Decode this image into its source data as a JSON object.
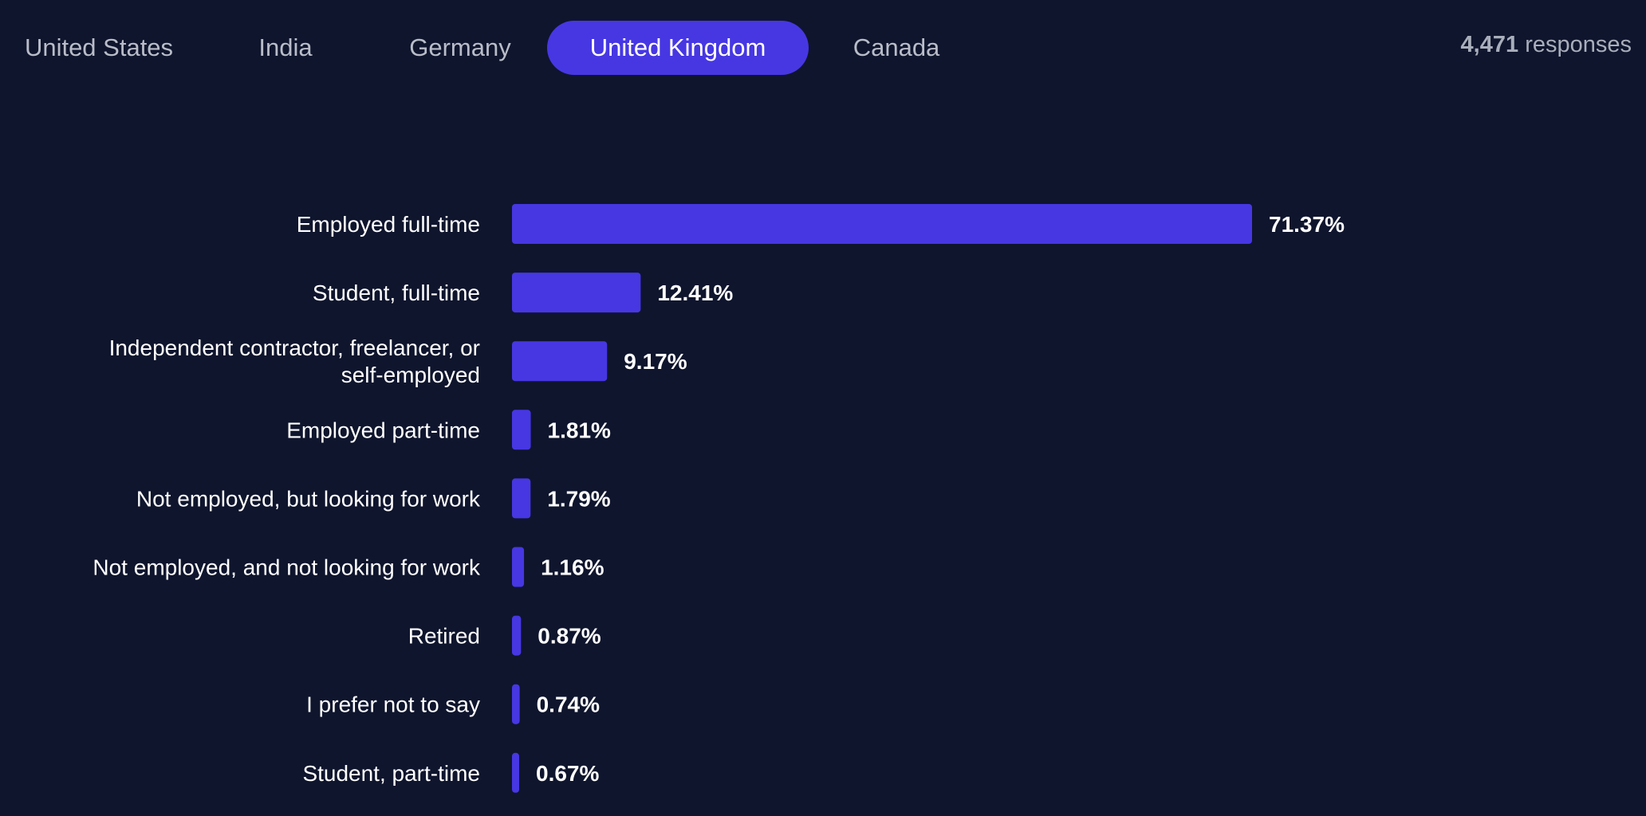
{
  "tabs": [
    {
      "label": "United States",
      "active": false
    },
    {
      "label": "India",
      "active": false
    },
    {
      "label": "Germany",
      "active": false
    },
    {
      "label": "United Kingdom",
      "active": true
    },
    {
      "label": "Canada",
      "active": false
    }
  ],
  "responses": {
    "count": "4,471",
    "label": "responses"
  },
  "colors": {
    "background": "#0f152d",
    "accent": "#4637e3",
    "bar": "#4637e3"
  },
  "chart_data": {
    "type": "bar",
    "orientation": "horizontal",
    "categories": [
      [
        "Employed full-time"
      ],
      [
        "Student, full-time"
      ],
      [
        "Independent contractor, freelancer, or",
        "self-employed"
      ],
      [
        "Employed part-time"
      ],
      [
        "Not employed, but looking for work"
      ],
      [
        "Not employed, and not looking for work"
      ],
      [
        "Retired"
      ],
      [
        "I prefer not to say"
      ],
      [
        "Student, part-time"
      ]
    ],
    "values": [
      71.37,
      12.41,
      9.17,
      1.81,
      1.79,
      1.16,
      0.87,
      0.74,
      0.67
    ],
    "value_labels": [
      "71.37%",
      "12.41%",
      "9.17%",
      "1.81%",
      "1.79%",
      "1.16%",
      "0.87%",
      "0.74%",
      "0.67%"
    ],
    "title": "",
    "xlabel": "",
    "ylabel": "",
    "xlim": [
      0,
      71.37
    ],
    "grid": false,
    "legend": "none"
  }
}
